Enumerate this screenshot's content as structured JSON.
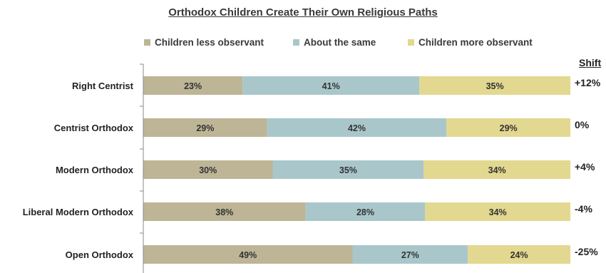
{
  "chart_data": {
    "type": "bar",
    "orientation": "horizontal",
    "stacked": true,
    "title": "Orthodox Children Create Their Own Religious Paths",
    "categories": [
      "Right Centrist",
      "Centrist Orthodox",
      "Modern Orthodox",
      "Liberal Modern Orthodox",
      "Open Orthodox"
    ],
    "series": [
      {
        "name": "Children less observant",
        "color": "#bdb596",
        "values": [
          23,
          29,
          30,
          38,
          49
        ],
        "labels": [
          "23%",
          "29%",
          "30%",
          "38%",
          "49%"
        ]
      },
      {
        "name": "About the same",
        "color": "#a9c7ca",
        "values": [
          41,
          42,
          35,
          28,
          27
        ],
        "labels": [
          "41%",
          "42%",
          "35%",
          "28%",
          "27%"
        ]
      },
      {
        "name": "Children more observant",
        "color": "#e3d88f",
        "values": [
          35,
          29,
          34,
          34,
          24
        ],
        "labels": [
          "35%",
          "29%",
          "34%",
          "34%",
          "24%"
        ]
      }
    ],
    "shift_header": "Shift",
    "shift": [
      "+12%",
      "0%",
      "+4%",
      "-4%",
      "-25%"
    ],
    "legend_position": "top",
    "grid": false
  }
}
